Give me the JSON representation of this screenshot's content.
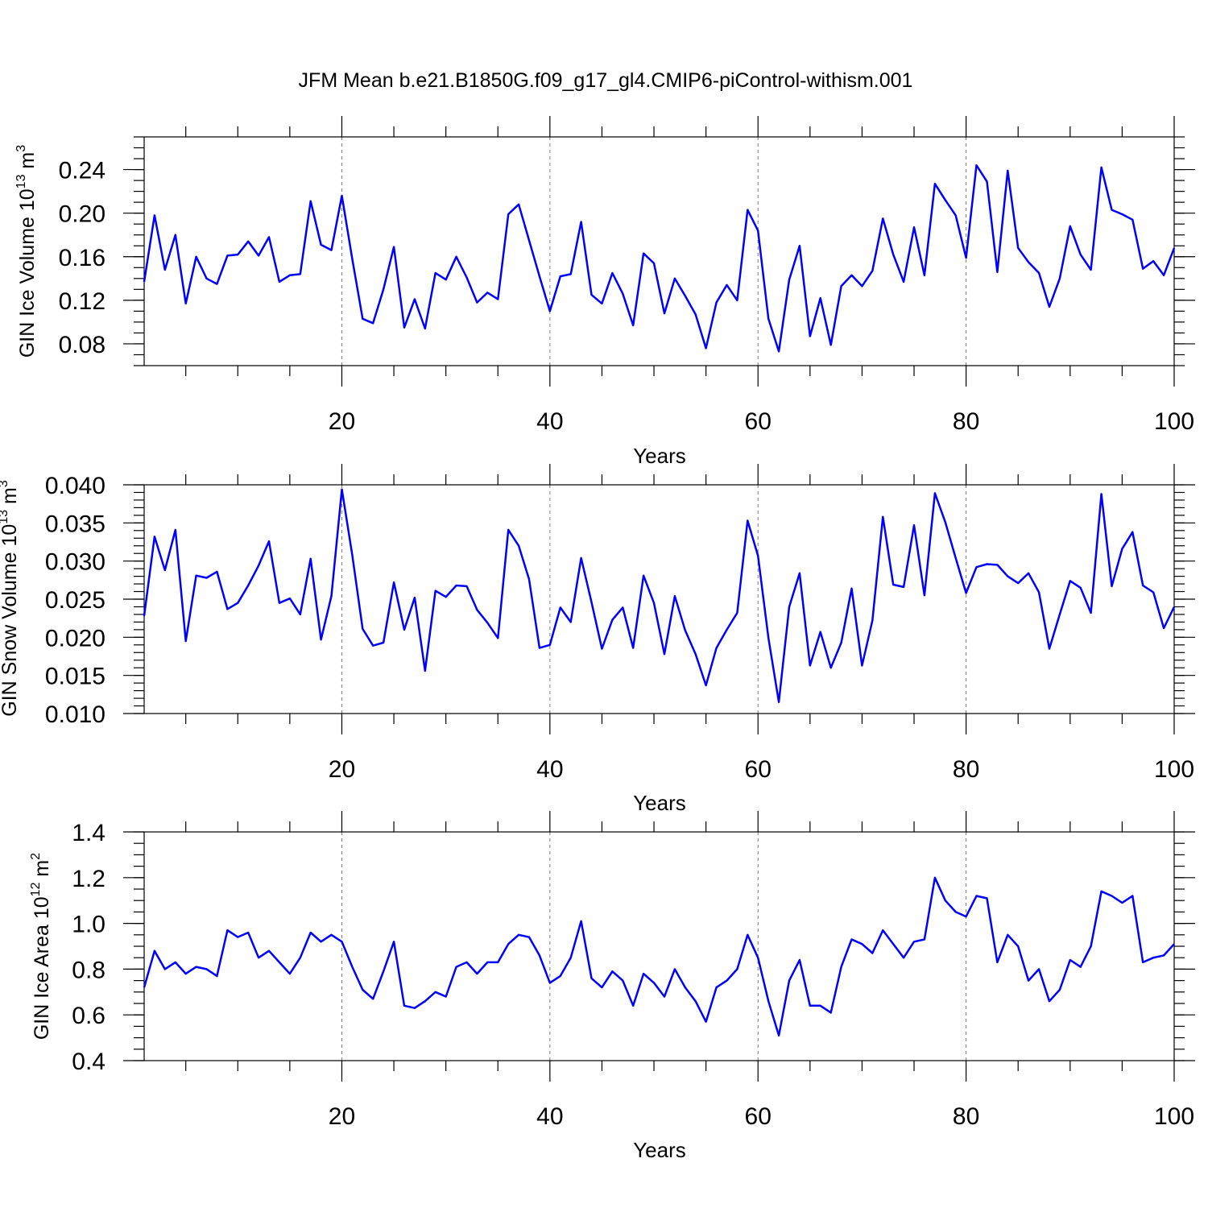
{
  "chart_data": {
    "title": "JFM Mean b.e21.B1850G.f09_g17_gl4.CMIP6-piControl-withism.001",
    "series_color": "#0000ff",
    "panels": [
      {
        "type": "line",
        "ylabel_main": "GIN Ice Volume 10",
        "ylabel_exp": "13",
        "ylabel_unit": "m",
        "ylabel_unit_exp": "3",
        "xlabel": "Years",
        "xlim": [
          1,
          100
        ],
        "ylim": [
          0.06,
          0.27
        ],
        "xticks": [
          20,
          40,
          60,
          80,
          100
        ],
        "xtick_labels": [
          "20",
          "40",
          "60",
          "80",
          "100"
        ],
        "yticks": [
          0.08,
          0.12,
          0.16,
          0.2,
          0.24
        ],
        "ytick_labels": [
          "0.08",
          "0.12",
          "0.16",
          "0.20",
          "0.24"
        ],
        "ytick_minor_step": 0.01,
        "grid_x": [
          20,
          40,
          60,
          80
        ],
        "values": [
          0.137,
          0.198,
          0.148,
          0.18,
          0.117,
          0.16,
          0.14,
          0.135,
          0.161,
          0.162,
          0.174,
          0.161,
          0.178,
          0.137,
          0.143,
          0.144,
          0.211,
          0.171,
          0.166,
          0.216,
          0.158,
          0.103,
          0.099,
          0.13,
          0.169,
          0.095,
          0.121,
          0.094,
          0.145,
          0.139,
          0.16,
          0.141,
          0.118,
          0.127,
          0.121,
          0.199,
          0.208,
          0.175,
          0.142,
          0.11,
          0.142,
          0.144,
          0.192,
          0.125,
          0.117,
          0.145,
          0.126,
          0.097,
          0.163,
          0.154,
          0.108,
          0.14,
          0.124,
          0.107,
          0.076,
          0.118,
          0.134,
          0.12,
          0.203,
          0.184,
          0.103,
          0.073,
          0.139,
          0.17,
          0.087,
          0.122,
          0.079,
          0.133,
          0.143,
          0.133,
          0.147,
          0.195,
          0.162,
          0.137,
          0.187,
          0.143,
          0.227,
          0.212,
          0.198,
          0.159,
          0.244,
          0.229,
          0.146,
          0.239,
          0.168,
          0.155,
          0.145,
          0.114,
          0.14,
          0.188,
          0.162,
          0.148,
          0.242,
          0.203,
          0.199,
          0.194,
          0.149,
          0.156,
          0.143,
          0.168
        ]
      },
      {
        "type": "line",
        "ylabel_main": "GIN Snow Volume 10",
        "ylabel_exp": "13",
        "ylabel_unit": "m",
        "ylabel_unit_exp": "3",
        "xlabel": "Years",
        "xlim": [
          1,
          100
        ],
        "ylim": [
          0.01,
          0.04
        ],
        "xticks": [
          20,
          40,
          60,
          80,
          100
        ],
        "xtick_labels": [
          "20",
          "40",
          "60",
          "80",
          "100"
        ],
        "yticks": [
          0.01,
          0.015,
          0.02,
          0.025,
          0.03,
          0.035,
          0.04
        ],
        "ytick_labels": [
          "0.010",
          "0.015",
          "0.020",
          "0.025",
          "0.030",
          "0.035",
          "0.040"
        ],
        "ytick_minor_step": 0.001,
        "grid_x": [
          20,
          40,
          60,
          80
        ],
        "values": [
          0.0228,
          0.0332,
          0.0288,
          0.0341,
          0.0195,
          0.0281,
          0.0278,
          0.0286,
          0.0237,
          0.0245,
          0.0268,
          0.0294,
          0.0326,
          0.0245,
          0.0251,
          0.023,
          0.0303,
          0.0197,
          0.0254,
          0.0394,
          0.0308,
          0.0211,
          0.0189,
          0.0193,
          0.0272,
          0.021,
          0.0252,
          0.0156,
          0.0261,
          0.0253,
          0.0268,
          0.0267,
          0.0236,
          0.0219,
          0.0199,
          0.0341,
          0.032,
          0.0276,
          0.0186,
          0.019,
          0.0239,
          0.022,
          0.0304,
          0.0246,
          0.0185,
          0.0223,
          0.0239,
          0.0186,
          0.0281,
          0.0245,
          0.0178,
          0.0254,
          0.0209,
          0.0178,
          0.0137,
          0.0186,
          0.021,
          0.0232,
          0.0353,
          0.0307,
          0.0199,
          0.0115,
          0.024,
          0.0284,
          0.0163,
          0.0207,
          0.016,
          0.0193,
          0.0264,
          0.0163,
          0.0222,
          0.0358,
          0.0269,
          0.0266,
          0.0347,
          0.0255,
          0.0389,
          0.0351,
          0.0304,
          0.0258,
          0.0292,
          0.0296,
          0.0295,
          0.028,
          0.0271,
          0.0284,
          0.0259,
          0.0185,
          0.023,
          0.0274,
          0.0265,
          0.0232,
          0.0388,
          0.0267,
          0.0316,
          0.0338,
          0.0268,
          0.0259,
          0.0212,
          0.024
        ]
      },
      {
        "type": "line",
        "ylabel_main": "GIN Ice Area 10",
        "ylabel_exp": "12",
        "ylabel_unit": "m",
        "ylabel_unit_exp": "2",
        "xlabel": "Years",
        "xlim": [
          1,
          100
        ],
        "ylim": [
          0.4,
          1.4
        ],
        "xticks": [
          20,
          40,
          60,
          80,
          100
        ],
        "xtick_labels": [
          "20",
          "40",
          "60",
          "80",
          "100"
        ],
        "yticks": [
          0.4,
          0.6,
          0.8,
          1.0,
          1.2,
          1.4
        ],
        "ytick_labels": [
          "0.4",
          "0.6",
          "0.8",
          "1.0",
          "1.2",
          "1.4"
        ],
        "ytick_minor_step": 0.05,
        "grid_x": [
          20,
          40,
          60,
          80
        ],
        "values": [
          0.72,
          0.88,
          0.8,
          0.83,
          0.78,
          0.81,
          0.8,
          0.77,
          0.97,
          0.94,
          0.96,
          0.85,
          0.88,
          0.83,
          0.78,
          0.85,
          0.96,
          0.92,
          0.95,
          0.92,
          0.81,
          0.71,
          0.67,
          0.79,
          0.92,
          0.64,
          0.63,
          0.66,
          0.7,
          0.68,
          0.81,
          0.83,
          0.78,
          0.83,
          0.83,
          0.91,
          0.95,
          0.94,
          0.86,
          0.74,
          0.77,
          0.85,
          1.01,
          0.76,
          0.72,
          0.79,
          0.75,
          0.64,
          0.78,
          0.74,
          0.68,
          0.8,
          0.72,
          0.66,
          0.57,
          0.72,
          0.75,
          0.8,
          0.95,
          0.85,
          0.66,
          0.51,
          0.75,
          0.84,
          0.64,
          0.64,
          0.61,
          0.81,
          0.93,
          0.91,
          0.87,
          0.97,
          0.91,
          0.85,
          0.92,
          0.93,
          1.2,
          1.1,
          1.05,
          1.03,
          1.12,
          1.11,
          0.83,
          0.95,
          0.9,
          0.75,
          0.8,
          0.66,
          0.71,
          0.84,
          0.81,
          0.9,
          1.14,
          1.12,
          1.09,
          1.12,
          0.83,
          0.85,
          0.86,
          0.91
        ]
      }
    ]
  }
}
